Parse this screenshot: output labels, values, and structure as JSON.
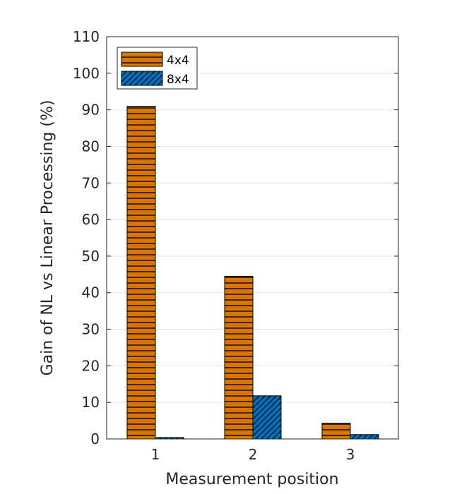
{
  "chart_data": {
    "type": "bar",
    "title": "",
    "xlabel": "Measurement position",
    "ylabel": "Gain of NL vs Linear Processing (%)",
    "categories": [
      "1",
      "2",
      "3"
    ],
    "series": [
      {
        "name": "4x4",
        "values": [
          91,
          44.5,
          4.3
        ],
        "color": "#d97600",
        "pattern": "horizontal-lines"
      },
      {
        "name": "8x4",
        "values": [
          0.4,
          11.8,
          1.2
        ],
        "color": "#0072bd",
        "pattern": "diagonal-lines"
      }
    ],
    "ylim": [
      0,
      110
    ],
    "yticks": [
      0,
      10,
      20,
      30,
      40,
      50,
      60,
      70,
      80,
      90,
      100,
      110
    ],
    "grid": true,
    "legend_position": "top-left"
  }
}
